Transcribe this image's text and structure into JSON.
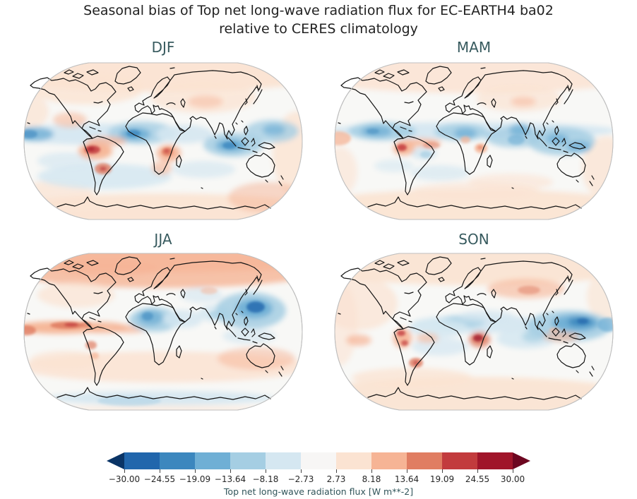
{
  "figure": {
    "title_line1": "Seasonal bias of Top net long-wave radiation flux for EC-EARTH4 ba02",
    "title_line2": "relative to CERES climatology"
  },
  "panels": [
    {
      "id": "djf",
      "label": "DJF"
    },
    {
      "id": "mam",
      "label": "MAM"
    },
    {
      "id": "jja",
      "label": "JJA"
    },
    {
      "id": "son",
      "label": "SON"
    }
  ],
  "colorbar": {
    "label": "Top net long-wave radiation flux [W m**-2]",
    "ticks": [
      "−30.00",
      "−24.55",
      "−19.09",
      "−13.64",
      "−8.18",
      "−2.73",
      "2.73",
      "8.18",
      "13.64",
      "19.09",
      "24.55",
      "30.00"
    ],
    "segment_colors": [
      "#2166ac",
      "#3c87be",
      "#6fafd5",
      "#a5cee3",
      "#d5e7f1",
      "#f7f6f5",
      "#fbe3d2",
      "#f6b495",
      "#e07d62",
      "#c23b3d",
      "#a0152a"
    ],
    "under_color": "#0a3466",
    "over_color": "#6d0620"
  },
  "chart_data": {
    "type": "heatmap",
    "subtype": "global bias maps, Robinson projection, 2x2 seasonal grid",
    "title": "Seasonal bias of Top net long-wave radiation flux for EC-EARTH4 ba02 relative to CERES climatology",
    "variable": "Top net long-wave radiation flux",
    "units": "W m**-2",
    "model": "EC-EARTH4 ba02",
    "reference": "CERES climatology",
    "seasons": [
      "DJF",
      "MAM",
      "JJA",
      "SON"
    ],
    "levels": [
      -30.0,
      -24.55,
      -19.09,
      -13.64,
      -8.18,
      -2.73,
      2.73,
      8.18,
      13.64,
      19.09,
      24.55,
      30.0
    ],
    "colormap": "RdBu_r diverging (blue = negative bias, red = positive bias)",
    "legend_position": "bottom horizontal colorbar with under/over arrows",
    "notable_biases": {
      "DJF": "strong negative over eq. Atlantic/Gulf of Guinea and E Indian Ocean near Indonesia; strong positive over Amazon/Peru, Congo; weak positive high latitudes",
      "MAM": "negative band along ~10N across Pacific, Atlantic, Indian Ocean and W Pacific; strong positive over Peru/Andes and N South America coast",
      "JJA": "positive ITCZ band in E Pacific and over N high latitudes; negative over Sahara/W Africa and strong negative NW Pacific near Japan/Philippine Sea",
      "SON": "strong negative W Pacific east of Philippines; strong positive Congo core and Peru/Andes; broad weak positive elsewhere"
    }
  },
  "text_colors": {
    "title": "#222222",
    "season_label": "#375a5e",
    "tick_label": "#262626",
    "colorbar_label": "#31555a"
  }
}
